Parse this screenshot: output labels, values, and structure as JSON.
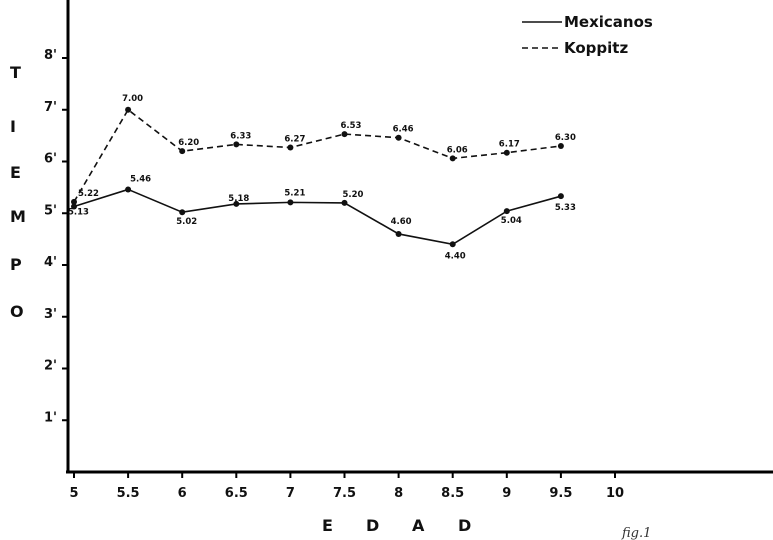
{
  "chart_data": {
    "type": "line",
    "x": [
      5,
      5.5,
      6,
      6.5,
      7,
      7.5,
      8,
      8.5,
      9,
      9.5
    ],
    "x_ticks": [
      "5",
      "5.5",
      "6",
      "6.5",
      "7",
      "7.5",
      "8",
      "8.5",
      "9",
      "9.5",
      "10"
    ],
    "y_ticks": [
      "1'",
      "2'",
      "3'",
      "4'",
      "5'",
      "6'",
      "7'",
      "8'"
    ],
    "xlabel": "E D A D",
    "ylabel": "T I E M P O",
    "xlim": [
      5,
      10
    ],
    "ylim": [
      0,
      8
    ],
    "grid": false,
    "legend_position": "top-right",
    "series": [
      {
        "name": "Mexicanos",
        "style": "solid",
        "values": [
          5.13,
          5.46,
          5.02,
          5.18,
          5.21,
          5.2,
          4.6,
          4.4,
          5.04,
          5.33
        ],
        "labels": [
          "5.13",
          "5.46",
          "5.02",
          "5.18",
          "5.21",
          "5.20",
          "4.60",
          "4.40",
          "5.04",
          "5.33"
        ]
      },
      {
        "name": "Koppitz",
        "style": "dashed",
        "values": [
          5.22,
          7.0,
          6.2,
          6.33,
          6.27,
          6.53,
          6.46,
          6.06,
          6.17,
          6.3
        ],
        "labels": [
          "5.22",
          "7.00",
          "6.20",
          "6.33",
          "6.27",
          "6.53",
          "6.46",
          "6.06",
          "6.17",
          "6.30"
        ]
      }
    ],
    "annotation": "fig.1",
    "colors": {
      "line": "#111111",
      "background": "#ffffff"
    }
  }
}
